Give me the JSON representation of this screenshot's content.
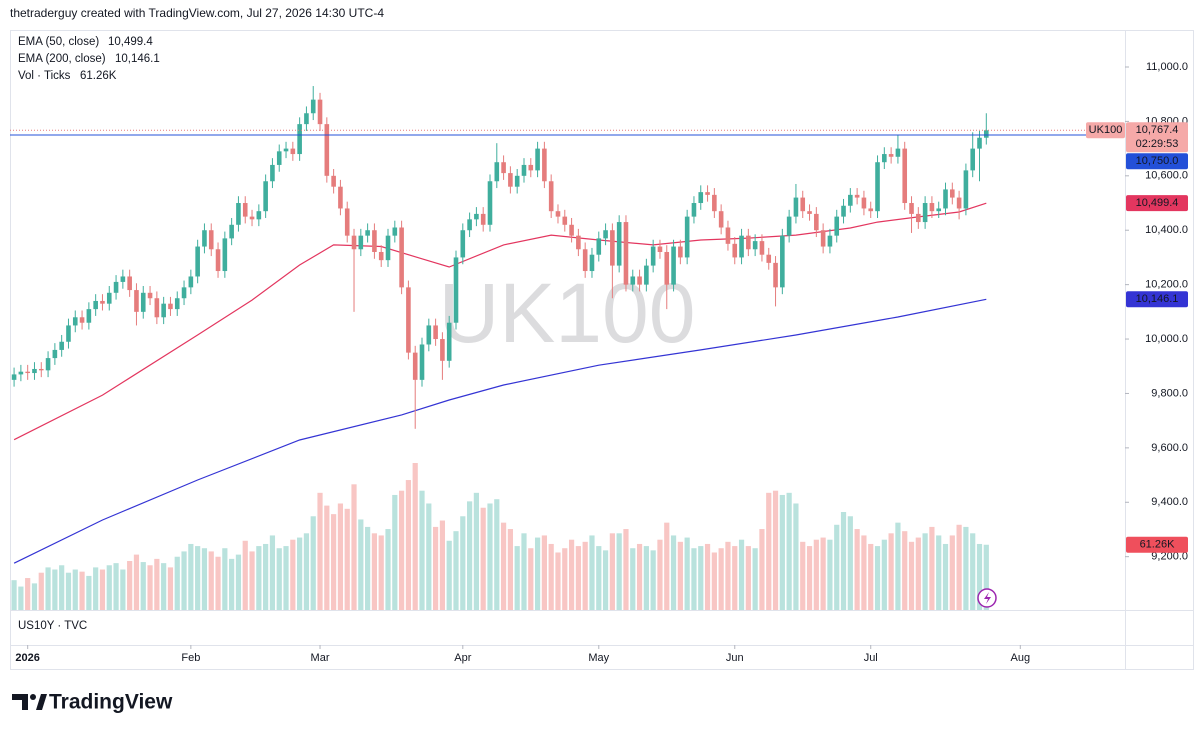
{
  "chart_data": {
    "type": "candlestick",
    "title": "thetraderguy created with TradingView.com, Jul 27, 2026 14:30 UTC-4",
    "watermark": "UK100",
    "symbol": "UK100",
    "pane_label": "US10Y · TVC",
    "countdown": "02:29:53",
    "up_color": "#3fae9d",
    "down_color": "#e57c7c",
    "grid": false,
    "xlim": [
      -0.6,
      163.4
    ],
    "xticks": [
      {
        "value": 2,
        "label": "2026"
      },
      {
        "value": 26,
        "label": "Feb"
      },
      {
        "value": 45,
        "label": "Mar"
      },
      {
        "value": 66,
        "label": "Apr"
      },
      {
        "value": 86,
        "label": "May"
      },
      {
        "value": 106,
        "label": "Jun"
      },
      {
        "value": 126,
        "label": "Jul"
      },
      {
        "value": 148,
        "label": "Aug"
      }
    ],
    "ylim": [
      9004,
      11136
    ],
    "yticks": [
      {
        "value": 9200,
        "label": "9,200.0"
      },
      {
        "value": 9400,
        "label": "9,400.0"
      },
      {
        "value": 9600,
        "label": "9,600.0"
      },
      {
        "value": 9800,
        "label": "9,800.0"
      },
      {
        "value": 10000,
        "label": "10,000.0"
      },
      {
        "value": 10200,
        "label": "10,200.0"
      },
      {
        "value": 10400,
        "label": "10,400.0"
      },
      {
        "value": 10600,
        "label": "10,600.0"
      },
      {
        "value": 10800,
        "label": "10,800.0"
      },
      {
        "value": 11000,
        "label": "11,000.0"
      }
    ],
    "last_price": {
      "value": 10767.4,
      "label": "10,767.4"
    },
    "price_line": {
      "value": 10750,
      "label": "10,750.0",
      "color": "#2350d8"
    },
    "open": [
      9850,
      9870,
      9880,
      9875,
      9890,
      9885,
      9930,
      9960,
      9990,
      10050,
      10080,
      10060,
      10110,
      10140,
      10130,
      10170,
      10210,
      10230,
      10180,
      10100,
      10170,
      10150,
      10080,
      10130,
      10110,
      10150,
      10190,
      10230,
      10340,
      10400,
      10330,
      10250,
      10370,
      10420,
      10500,
      10450,
      10440,
      10470,
      10580,
      10640,
      10690,
      10700,
      10680,
      10790,
      10830,
      10880,
      10790,
      10600,
      10560,
      10480,
      10380,
      10330,
      10380,
      10400,
      10320,
      10290,
      10380,
      10410,
      10190,
      9950,
      9850,
      9980,
      10050,
      10000,
      9920,
      10060,
      10300,
      10400,
      10440,
      10460,
      10420,
      10580,
      10650,
      10610,
      10560,
      10600,
      10640,
      10620,
      10700,
      10580,
      10470,
      10450,
      10420,
      10380,
      10330,
      10250,
      10310,
      10370,
      10400,
      10270,
      10430,
      10200,
      10230,
      10200,
      10270,
      10340,
      10320,
      10200,
      10340,
      10300,
      10450,
      10500,
      10540,
      10530,
      10470,
      10410,
      10350,
      10300,
      10380,
      10330,
      10360,
      10310,
      10280,
      10190,
      10380,
      10450,
      10520,
      10470,
      10460,
      10400,
      10340,
      10380,
      10450,
      10490,
      10530,
      10520,
      10480,
      10470,
      10650,
      10680,
      10670,
      10700,
      10500,
      10460,
      10430,
      10500,
      10470,
      10480,
      10550,
      10520,
      10480,
      10620,
      10700,
      10740
    ],
    "high": [
      9895,
      9905,
      9905,
      9915,
      9915,
      9955,
      9985,
      10015,
      10075,
      10105,
      10105,
      10135,
      10165,
      10165,
      10195,
      10235,
      10255,
      10255,
      10205,
      10195,
      10195,
      10175,
      10155,
      10155,
      10175,
      10215,
      10255,
      10365,
      10425,
      10425,
      10355,
      10395,
      10445,
      10525,
      10525,
      10475,
      10495,
      10605,
      10665,
      10715,
      10725,
      10725,
      10815,
      10855,
      10930,
      10905,
      10815,
      10625,
      10585,
      10505,
      10405,
      10405,
      10425,
      10425,
      10345,
      10405,
      10435,
      10435,
      10215,
      9975,
      10005,
      10075,
      10075,
      10025,
      10085,
      10325,
      10425,
      10465,
      10485,
      10485,
      10605,
      10720,
      10675,
      10635,
      10625,
      10665,
      10665,
      10725,
      10725,
      10605,
      10495,
      10475,
      10445,
      10405,
      10355,
      10335,
      10395,
      10425,
      10425,
      10455,
      10455,
      10255,
      10255,
      10295,
      10365,
      10365,
      10345,
      10365,
      10365,
      10475,
      10525,
      10565,
      10565,
      10555,
      10495,
      10435,
      10375,
      10405,
      10405,
      10385,
      10385,
      10335,
      10305,
      10405,
      10475,
      10570,
      10545,
      10495,
      10485,
      10425,
      10405,
      10475,
      10515,
      10555,
      10555,
      10545,
      10505,
      10675,
      10705,
      10705,
      10750,
      10725,
      10525,
      10485,
      10525,
      10525,
      10505,
      10575,
      10575,
      10545,
      10645,
      10760,
      10765,
      10830
    ],
    "low": [
      9825,
      9845,
      9850,
      9850,
      9860,
      9860,
      9905,
      9935,
      9965,
      10025,
      10035,
      10035,
      10085,
      10105,
      10105,
      10145,
      10185,
      10155,
      10050,
      10075,
      10125,
      10055,
      10055,
      10085,
      10085,
      10125,
      10165,
      10205,
      10315,
      10305,
      10225,
      10225,
      10345,
      10395,
      10425,
      10415,
      10415,
      10445,
      10555,
      10615,
      10665,
      10655,
      10655,
      10765,
      10805,
      10765,
      10575,
      10535,
      10455,
      10355,
      10100,
      10305,
      10355,
      10295,
      10265,
      10265,
      10355,
      10165,
      9925,
      9670,
      9825,
      9955,
      9975,
      9850,
      9895,
      10035,
      10275,
      10375,
      10415,
      10395,
      10395,
      10555,
      10585,
      10535,
      10535,
      10575,
      10595,
      10595,
      10555,
      10445,
      10425,
      10395,
      10355,
      10305,
      10225,
      10225,
      10285,
      10345,
      10150,
      10245,
      10175,
      10175,
      10175,
      10175,
      10245,
      10295,
      10110,
      10175,
      10275,
      10275,
      10425,
      10475,
      10505,
      10445,
      10385,
      10325,
      10275,
      10275,
      10305,
      10305,
      10285,
      10255,
      10120,
      10165,
      10355,
      10425,
      10445,
      10435,
      10375,
      10315,
      10315,
      10355,
      10425,
      10465,
      10495,
      10455,
      10445,
      10445,
      10625,
      10645,
      10645,
      10475,
      10390,
      10405,
      10405,
      10445,
      10445,
      10455,
      10495,
      10440,
      10455,
      10595,
      10580,
      10715
    ],
    "close": [
      9870,
      9880,
      9875,
      9890,
      9885,
      9930,
      9960,
      9990,
      10050,
      10080,
      10060,
      10110,
      10140,
      10130,
      10170,
      10210,
      10230,
      10180,
      10100,
      10170,
      10150,
      10080,
      10130,
      10110,
      10150,
      10190,
      10230,
      10340,
      10400,
      10330,
      10250,
      10370,
      10420,
      10500,
      10450,
      10440,
      10470,
      10580,
      10640,
      10690,
      10700,
      10680,
      10790,
      10830,
      10880,
      10790,
      10600,
      10560,
      10480,
      10380,
      10330,
      10380,
      10400,
      10320,
      10290,
      10380,
      10410,
      10190,
      9950,
      9850,
      9980,
      10050,
      10000,
      9920,
      10060,
      10300,
      10400,
      10440,
      10460,
      10420,
      10580,
      10650,
      10610,
      10560,
      10600,
      10640,
      10620,
      10700,
      10580,
      10470,
      10450,
      10420,
      10380,
      10330,
      10250,
      10310,
      10370,
      10400,
      10270,
      10430,
      10200,
      10230,
      10200,
      10270,
      10340,
      10320,
      10200,
      10340,
      10300,
      10450,
      10500,
      10540,
      10530,
      10470,
      10410,
      10350,
      10300,
      10380,
      10330,
      10360,
      10310,
      10280,
      10190,
      10380,
      10450,
      10520,
      10470,
      10460,
      10400,
      10340,
      10380,
      10450,
      10490,
      10530,
      10520,
      10480,
      10470,
      10650,
      10680,
      10670,
      10700,
      10500,
      10460,
      10430,
      10500,
      10470,
      10480,
      10550,
      10520,
      10480,
      10620,
      10700,
      10740,
      10767.4
    ],
    "volume": {
      "name": "Vol · Ticks",
      "up_color": "#b9e2dd",
      "down_color": "#f8c6c4",
      "tag_color": "#ef4f5c",
      "values": [
        28,
        22,
        30,
        25,
        35,
        40,
        38,
        42,
        35,
        38,
        36,
        32,
        40,
        38,
        42,
        44,
        38,
        46,
        52,
        45,
        42,
        48,
        44,
        40,
        50,
        55,
        62,
        60,
        58,
        55,
        50,
        58,
        48,
        52,
        65,
        55,
        60,
        62,
        70,
        58,
        60,
        66,
        68,
        72,
        88,
        110,
        98,
        90,
        100,
        95,
        118,
        85,
        78,
        72,
        70,
        76,
        108,
        112,
        122,
        138,
        112,
        100,
        78,
        84,
        65,
        74,
        88,
        102,
        110,
        96,
        100,
        104,
        82,
        76,
        60,
        72,
        58,
        68,
        70,
        62,
        54,
        58,
        66,
        60,
        64,
        70,
        60,
        56,
        72,
        72,
        76,
        58,
        62,
        60,
        56,
        66,
        82,
        70,
        64,
        68,
        58,
        60,
        62,
        54,
        58,
        64,
        60,
        66,
        60,
        58,
        76,
        110,
        112,
        108,
        110,
        100,
        64,
        60,
        66,
        68,
        66,
        80,
        92,
        88,
        76,
        70,
        62,
        60,
        66,
        72,
        82,
        74,
        64,
        68,
        72,
        78,
        70,
        62,
        70,
        80,
        78,
        72,
        62,
        61.26
      ],
      "last": {
        "value": 61.26,
        "label": "61.26K"
      }
    },
    "series": [
      {
        "name": "EMA (50, close)",
        "color": "#e3365f",
        "x": [
          0,
          13,
          27,
          35,
          42,
          47,
          54,
          60,
          64,
          72,
          79,
          86,
          94,
          101,
          108,
          115,
          123,
          127,
          133,
          139,
          143
        ],
        "values": [
          9630,
          9794,
          10015,
          10143,
          10272,
          10346,
          10340,
          10295,
          10265,
          10346,
          10382,
          10364,
          10346,
          10364,
          10371,
          10382,
          10408,
          10430,
          10449,
          10467,
          10499.4
        ],
        "last": {
          "value": 10499.4,
          "label": "10,499.4"
        }
      },
      {
        "name": "EMA (200, close)",
        "color": "#3434d4",
        "x": [
          0,
          13,
          27,
          42,
          57,
          64,
          72,
          86,
          101,
          115,
          130,
          143
        ],
        "values": [
          9176,
          9335,
          9482,
          9629,
          9721,
          9776,
          9831,
          9904,
          9960,
          10015,
          10081,
          10146.1
        ],
        "last": {
          "value": 10146.1,
          "label": "10,146.1"
        }
      }
    ]
  },
  "footer": {
    "brand": "TradingView"
  }
}
